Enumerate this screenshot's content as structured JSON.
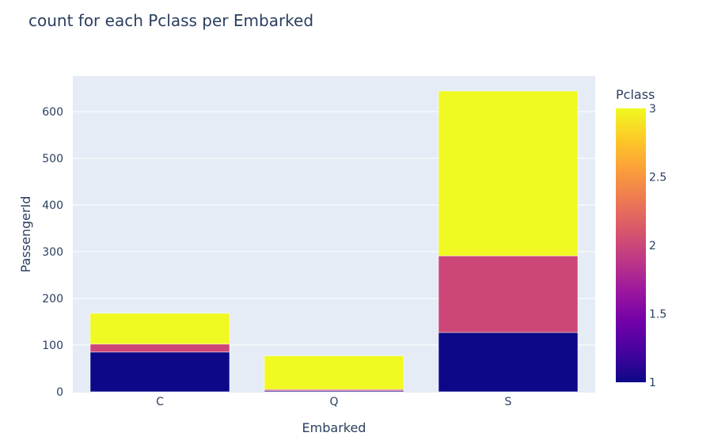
{
  "chart_data": {
    "type": "bar",
    "barmode": "stack",
    "title": "count for each Pclass per Embarked",
    "xlabel": "Embarked",
    "ylabel": "PassengerId",
    "categories": [
      "C",
      "Q",
      "S"
    ],
    "series": [
      {
        "pclass": 1,
        "color": "#0d0887",
        "values": [
          85,
          2,
          127
        ]
      },
      {
        "pclass": 2,
        "color": "#cc4778",
        "values": [
          17,
          3,
          164
        ]
      },
      {
        "pclass": 3,
        "color": "#f0f921",
        "values": [
          66,
          72,
          353
        ]
      }
    ],
    "ylim": [
      0,
      674
    ],
    "yticks": [
      0,
      100,
      200,
      300,
      400,
      500,
      600
    ],
    "grid": true,
    "plot_background": "#e5ecf6",
    "colorbar": {
      "title": "Pclass",
      "range": [
        1,
        3
      ],
      "ticks": [
        "1",
        "1.5",
        "2",
        "2.5",
        "3"
      ],
      "colorscale": [
        "#0d0887",
        "#46039f",
        "#7201a8",
        "#9c179e",
        "#bd3786",
        "#d8576b",
        "#ed7953",
        "#fb9f3a",
        "#fdca26",
        "#f0f921"
      ]
    }
  }
}
